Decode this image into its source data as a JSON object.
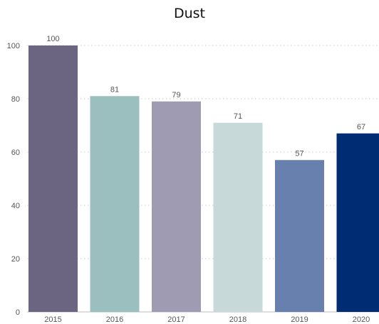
{
  "chart_data": {
    "type": "bar",
    "title": "Dust",
    "xlabel": "",
    "ylabel": "",
    "categories": [
      "2015",
      "2016",
      "2017",
      "2018",
      "2019",
      "2020"
    ],
    "values": [
      100,
      81,
      79,
      71,
      57,
      67
    ],
    "data_labels": [
      "100",
      "81",
      "79",
      "71",
      "57",
      "67"
    ],
    "ylim": [
      0,
      100
    ],
    "y_ticks": [
      0,
      20,
      40,
      60,
      80,
      100
    ],
    "grid": true,
    "legend": false,
    "bar_colors": [
      "#6b6582",
      "#9bbfbf",
      "#9e9bb2",
      "#c7dad9",
      "#6880ad",
      "#002c73"
    ],
    "text_color": "#555555",
    "grid_color": "#c8c8c8"
  }
}
